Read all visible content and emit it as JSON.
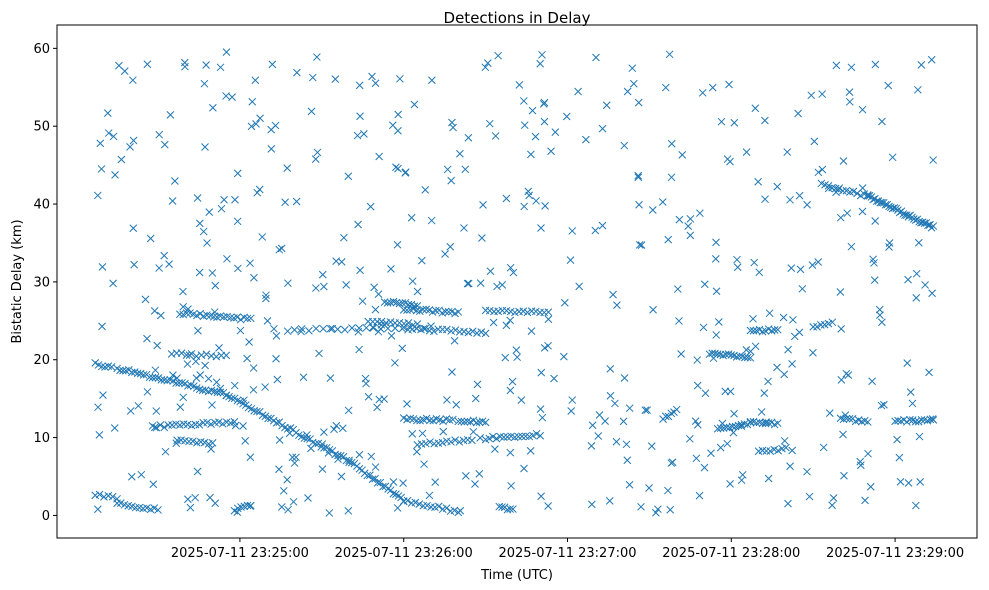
{
  "chart_data": {
    "type": "scatter",
    "title": "Detections in Delay",
    "xlabel": "Time (UTC)",
    "ylabel": "Bistatic Delay (km)",
    "marker": "x",
    "color": "#1f77b4",
    "grid": false,
    "legend": "none",
    "x_start": "2025-07-11 23:24:07",
    "x_end": "2025-07-11 23:29:14",
    "xlim": [
      "2025-07-11 23:23:53",
      "2025-07-11 23:29:30"
    ],
    "ylim": [
      -2.9,
      63
    ],
    "xticks": [
      "2025-07-11 23:25:00",
      "2025-07-11 23:26:00",
      "2025-07-11 23:27:00",
      "2025-07-11 23:28:00",
      "2025-07-11 23:29:00"
    ],
    "yticks": [
      0,
      10,
      20,
      30,
      40,
      50,
      60
    ],
    "tracks": [
      {
        "from": [
          "2025-07-11 23:24:15",
          18.9
        ],
        "to": [
          "2025-07-11 23:24:55",
          15.5
        ],
        "count": 38
      },
      {
        "from": [
          "2025-07-11 23:24:55",
          15.5
        ],
        "to": [
          "2025-07-11 23:25:40",
          7.0
        ],
        "count": 45
      },
      {
        "from": [
          "2025-07-11 23:25:40",
          7.0
        ],
        "to": [
          "2025-07-11 23:26:00",
          1.9
        ],
        "count": 22
      },
      {
        "from": [
          "2025-07-11 23:26:00",
          1.9
        ],
        "to": [
          "2025-07-11 23:26:20",
          0.5
        ],
        "count": 15
      },
      {
        "from": [
          "2025-07-11 23:24:07",
          19.5
        ],
        "to": [
          "2025-07-11 23:24:13",
          19.0
        ],
        "count": 6
      },
      {
        "from": [
          "2025-07-11 23:24:07",
          2.6
        ],
        "to": [
          "2025-07-11 23:24:15",
          2.2
        ],
        "count": 6
      },
      {
        "from": [
          "2025-07-11 23:24:15",
          1.5
        ],
        "to": [
          "2025-07-11 23:24:30",
          0.7
        ],
        "count": 12
      },
      {
        "from": [
          "2025-07-11 23:24:28",
          11.4
        ],
        "to": [
          "2025-07-11 23:24:58",
          12.0
        ],
        "count": 22
      },
      {
        "from": [
          "2025-07-11 23:24:37",
          9.7
        ],
        "to": [
          "2025-07-11 23:24:50",
          9.3
        ],
        "count": 10
      },
      {
        "from": [
          "2025-07-11 23:24:38",
          26.0
        ],
        "to": [
          "2025-07-11 23:25:04",
          25.2
        ],
        "count": 22
      },
      {
        "from": [
          "2025-07-11 23:24:35",
          20.8
        ],
        "to": [
          "2025-07-11 23:24:55",
          20.4
        ],
        "count": 12
      },
      {
        "from": [
          "2025-07-11 23:24:58",
          0.6
        ],
        "to": [
          "2025-07-11 23:25:04",
          1.4
        ],
        "count": 6
      },
      {
        "from": [
          "2025-07-11 23:25:53",
          27.5
        ],
        "to": [
          "2025-07-11 23:26:05",
          27.0
        ],
        "count": 12
      },
      {
        "from": [
          "2025-07-11 23:25:20",
          23.8
        ],
        "to": [
          "2025-07-11 23:26:10",
          24.2
        ],
        "count": 20
      },
      {
        "from": [
          "2025-07-11 23:25:47",
          24.9
        ],
        "to": [
          "2025-07-11 23:26:05",
          24.5
        ],
        "count": 12
      },
      {
        "from": [
          "2025-07-11 23:26:00",
          26.5
        ],
        "to": [
          "2025-07-11 23:26:20",
          26.0
        ],
        "count": 18
      },
      {
        "from": [
          "2025-07-11 23:26:00",
          24.0
        ],
        "to": [
          "2025-07-11 23:26:30",
          23.5
        ],
        "count": 20
      },
      {
        "from": [
          "2025-07-11 23:26:30",
          26.3
        ],
        "to": [
          "2025-07-11 23:26:53",
          26.0
        ],
        "count": 16
      },
      {
        "from": [
          "2025-07-11 23:26:00",
          12.4
        ],
        "to": [
          "2025-07-11 23:26:18",
          12.2
        ],
        "count": 16
      },
      {
        "from": [
          "2025-07-11 23:26:20",
          12.2
        ],
        "to": [
          "2025-07-11 23:26:30",
          12.0
        ],
        "count": 10
      },
      {
        "from": [
          "2025-07-11 23:26:05",
          9.2
        ],
        "to": [
          "2025-07-11 23:26:25",
          9.7
        ],
        "count": 14
      },
      {
        "from": [
          "2025-07-11 23:26:30",
          9.9
        ],
        "to": [
          "2025-07-11 23:26:50",
          10.4
        ],
        "count": 16
      },
      {
        "from": [
          "2025-07-11 23:26:35",
          1.2
        ],
        "to": [
          "2025-07-11 23:26:40",
          0.7
        ],
        "count": 6
      },
      {
        "from": [
          "2025-07-11 23:27:35",
          12.4
        ],
        "to": [
          "2025-07-11 23:27:40",
          13.5
        ],
        "count": 6
      },
      {
        "from": [
          "2025-07-11 23:27:52",
          20.8
        ],
        "to": [
          "2025-07-11 23:28:07",
          20.4
        ],
        "count": 16
      },
      {
        "from": [
          "2025-07-11 23:27:55",
          11.2
        ],
        "to": [
          "2025-07-11 23:28:07",
          11.8
        ],
        "count": 12
      },
      {
        "from": [
          "2025-07-11 23:28:07",
          23.6
        ],
        "to": [
          "2025-07-11 23:28:17",
          23.9
        ],
        "count": 10
      },
      {
        "from": [
          "2025-07-11 23:28:07",
          12.0
        ],
        "to": [
          "2025-07-11 23:28:17",
          11.8
        ],
        "count": 10
      },
      {
        "from": [
          "2025-07-11 23:28:10",
          8.2
        ],
        "to": [
          "2025-07-11 23:28:20",
          8.6
        ],
        "count": 8
      },
      {
        "from": [
          "2025-07-11 23:28:30",
          24.3
        ],
        "to": [
          "2025-07-11 23:28:37",
          24.8
        ],
        "count": 6
      },
      {
        "from": [
          "2025-07-11 23:28:33",
          42.5
        ],
        "to": [
          "2025-07-11 23:28:50",
          41.0
        ],
        "count": 14
      },
      {
        "from": [
          "2025-07-11 23:28:50",
          41.0
        ],
        "to": [
          "2025-07-11 23:29:14",
          37.0
        ],
        "count": 38
      },
      {
        "from": [
          "2025-07-11 23:28:40",
          12.4
        ],
        "to": [
          "2025-07-11 23:28:50",
          12.1
        ],
        "count": 10
      },
      {
        "from": [
          "2025-07-11 23:29:00",
          12.1
        ],
        "to": [
          "2025-07-11 23:29:14",
          12.2
        ],
        "count": 14
      }
    ],
    "scatter_count": 560,
    "scatter_seed": 20250711
  }
}
